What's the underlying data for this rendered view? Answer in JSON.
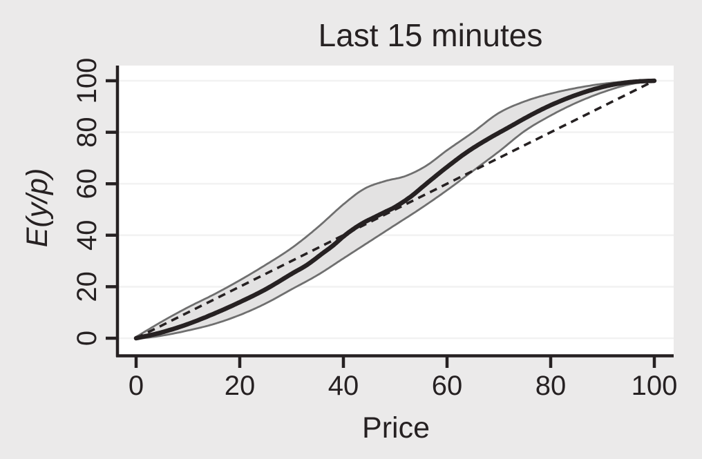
{
  "figure": {
    "background_color": "#ebeaea",
    "plot_background": "#ffffff",
    "text_color": "#262122",
    "gridline_color": "#f2f2f2",
    "axis_color": "#262122"
  },
  "chart_data": {
    "type": "line",
    "title": "Last 15 minutes",
    "xlabel": "Price",
    "ylabel": "E(y/p)",
    "xlim": [
      0,
      100
    ],
    "ylim": [
      0,
      100
    ],
    "x_ticks": [
      0,
      20,
      40,
      60,
      80,
      100
    ],
    "y_ticks": [
      0,
      20,
      40,
      60,
      80,
      100
    ],
    "grid": "horizontal-only",
    "legend": "none",
    "band_fill": "#e3e2e2",
    "band_edge_color": "#6f6f6f",
    "series": [
      {
        "name": "conditional-expectation",
        "style": "thick-solid",
        "color": "#262122",
        "points": [
          [
            0,
            0
          ],
          [
            5,
            2.3
          ],
          [
            10,
            5.5
          ],
          [
            15,
            9.5
          ],
          [
            20,
            14
          ],
          [
            25,
            19
          ],
          [
            30,
            25
          ],
          [
            33,
            28.5
          ],
          [
            36,
            33
          ],
          [
            38,
            36
          ],
          [
            40,
            39.5
          ],
          [
            42,
            42.5
          ],
          [
            44,
            45
          ],
          [
            46,
            47
          ],
          [
            48,
            49
          ],
          [
            50,
            51
          ],
          [
            53,
            55
          ],
          [
            56,
            60
          ],
          [
            60,
            66.5
          ],
          [
            64,
            72.5
          ],
          [
            68,
            77.5
          ],
          [
            72,
            82
          ],
          [
            76,
            86.5
          ],
          [
            80,
            90.5
          ],
          [
            84,
            93.8
          ],
          [
            88,
            96.5
          ],
          [
            92,
            98.5
          ],
          [
            96,
            99.6
          ],
          [
            100,
            100
          ]
        ]
      },
      {
        "name": "confidence-band-upper",
        "style": "band-edge",
        "color": "#6f6f6f",
        "points": [
          [
            0,
            0.5
          ],
          [
            5,
            6.5
          ],
          [
            10,
            12
          ],
          [
            15,
            17
          ],
          [
            20,
            22.5
          ],
          [
            25,
            28.5
          ],
          [
            30,
            35
          ],
          [
            35,
            43
          ],
          [
            40,
            52
          ],
          [
            44,
            58
          ],
          [
            48,
            61
          ],
          [
            52,
            63
          ],
          [
            56,
            67
          ],
          [
            60,
            73
          ],
          [
            65,
            80
          ],
          [
            70,
            87.5
          ],
          [
            75,
            92
          ],
          [
            80,
            95
          ],
          [
            85,
            97.2
          ],
          [
            90,
            98.8
          ],
          [
            95,
            99.7
          ],
          [
            100,
            100
          ]
        ]
      },
      {
        "name": "confidence-band-lower",
        "style": "band-edge",
        "color": "#6f6f6f",
        "points": [
          [
            0,
            -0.3
          ],
          [
            5,
            1
          ],
          [
            10,
            3
          ],
          [
            15,
            5.5
          ],
          [
            20,
            9
          ],
          [
            25,
            13.5
          ],
          [
            30,
            19
          ],
          [
            35,
            24.5
          ],
          [
            40,
            31
          ],
          [
            45,
            37.5
          ],
          [
            50,
            44
          ],
          [
            55,
            50.5
          ],
          [
            60,
            57.5
          ],
          [
            65,
            65
          ],
          [
            70,
            72.5
          ],
          [
            75,
            80.5
          ],
          [
            80,
            86.5
          ],
          [
            85,
            91.5
          ],
          [
            90,
            95.5
          ],
          [
            95,
            98.5
          ],
          [
            100,
            100
          ]
        ]
      },
      {
        "name": "diagonal-reference",
        "style": "dashed",
        "color": "#262122",
        "points": [
          [
            0,
            0
          ],
          [
            100,
            100
          ]
        ]
      }
    ]
  }
}
